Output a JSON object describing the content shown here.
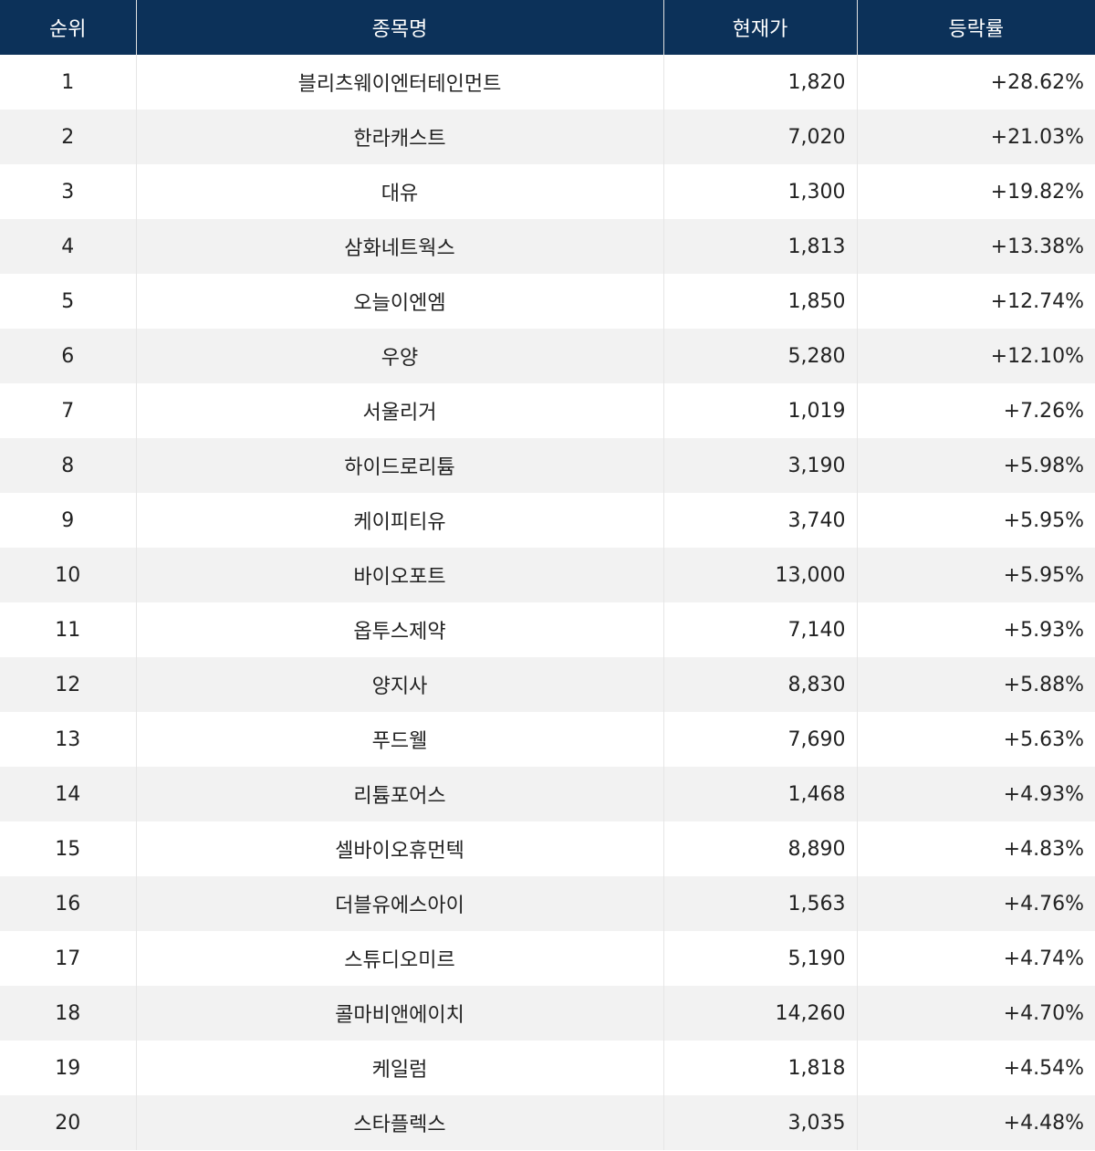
{
  "table": {
    "header": [
      "순위",
      "종목명",
      "현재가",
      "등락률"
    ],
    "rows": [
      [
        "1",
        "블리츠웨이엔터테인먼트",
        "1,820",
        "+28.62%"
      ],
      [
        "2",
        "한라캐스트",
        "7,020",
        "+21.03%"
      ],
      [
        "3",
        "대유",
        "1,300",
        "+19.82%"
      ],
      [
        "4",
        "삼화네트웍스",
        "1,813",
        "+13.38%"
      ],
      [
        "5",
        "오늘이엔엠",
        "1,850",
        "+12.74%"
      ],
      [
        "6",
        "우양",
        "5,280",
        "+12.10%"
      ],
      [
        "7",
        "서울리거",
        "1,019",
        "+7.26%"
      ],
      [
        "8",
        "하이드로리튬",
        "3,190",
        "+5.98%"
      ],
      [
        "9",
        "케이피티유",
        "3,740",
        "+5.95%"
      ],
      [
        "10",
        "바이오포트",
        "13,000",
        "+5.95%"
      ],
      [
        "11",
        "옵투스제약",
        "7,140",
        "+5.93%"
      ],
      [
        "12",
        "양지사",
        "8,830",
        "+5.88%"
      ],
      [
        "13",
        "푸드웰",
        "7,690",
        "+5.63%"
      ],
      [
        "14",
        "리튬포어스",
        "1,468",
        "+4.93%"
      ],
      [
        "15",
        "셀바이오휴먼텍",
        "8,890",
        "+4.83%"
      ],
      [
        "16",
        "더블유에스아이",
        "1,563",
        "+4.76%"
      ],
      [
        "17",
        "스튜디오미르",
        "5,190",
        "+4.74%"
      ],
      [
        "18",
        "콜마비앤에이치",
        "14,260",
        "+4.70%"
      ],
      [
        "19",
        "케일럼",
        "1,818",
        "+4.54%"
      ],
      [
        "20",
        "스타플렉스",
        "3,035",
        "+4.48%"
      ]
    ]
  }
}
